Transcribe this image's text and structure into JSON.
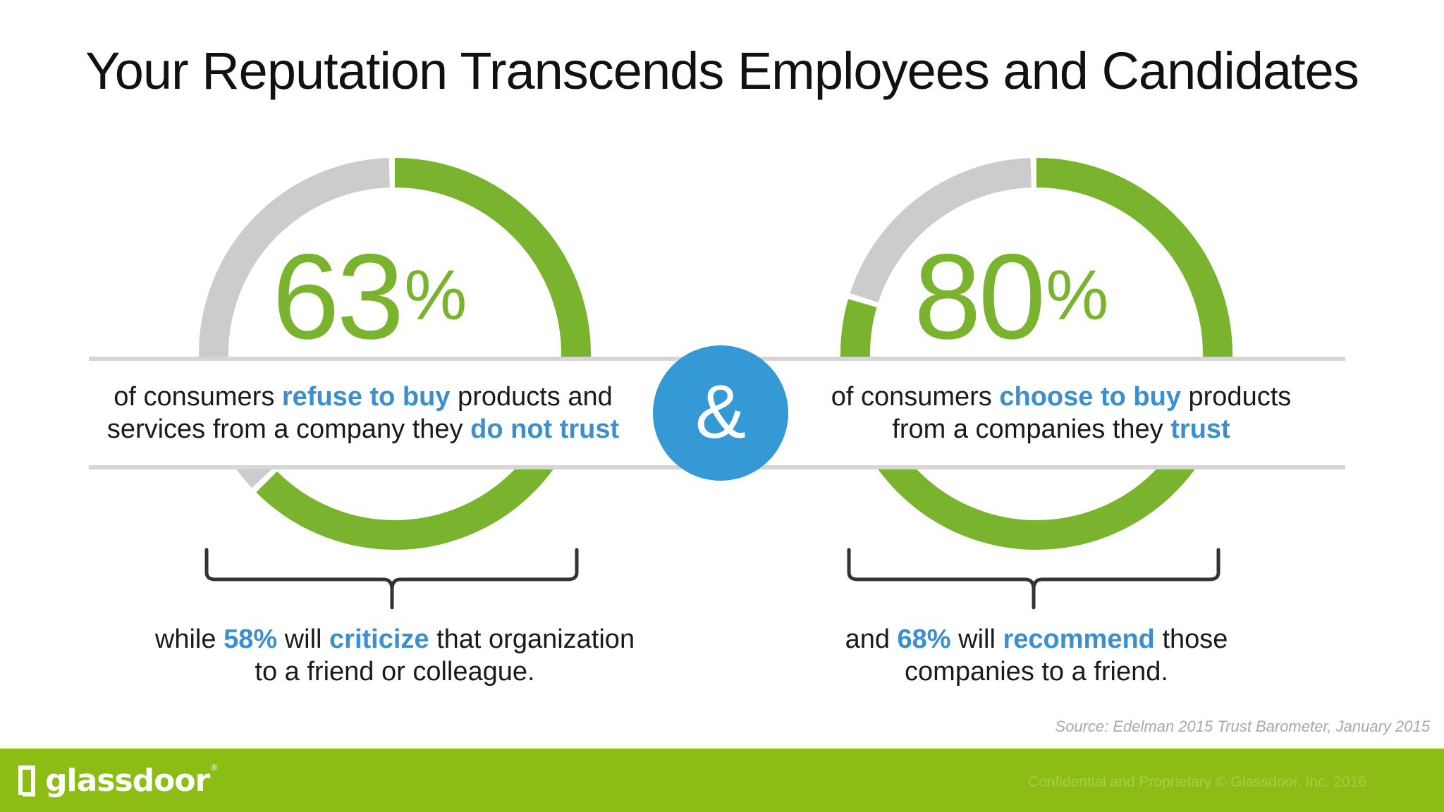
{
  "title": "Your Reputation Transcends Employees and Candidates",
  "colors": {
    "accent_green": "#7ab32e",
    "ring_gray": "#cccccc",
    "highlight_blue": "#3a8fce",
    "amp_circle": "#3599d6",
    "footer_green": "#8cbd14"
  },
  "left": {
    "percent": {
      "value": 63,
      "number": "63",
      "symbol": "%"
    },
    "ring_fill_fraction": 0.63,
    "text": {
      "p1": "of consumers ",
      "h1": "refuse to buy",
      "p2": " products and services from a company they ",
      "h2": "do not trust"
    },
    "sub": {
      "p1": "while ",
      "h1": "58%",
      "p2": " will ",
      "h2": "criticize",
      "p3": " that organization to a friend or colleague."
    }
  },
  "ampersand": "&",
  "right": {
    "percent": {
      "value": 80,
      "number": "80",
      "symbol": "%"
    },
    "ring_fill_fraction": 0.8,
    "text": {
      "p1": "of consumers ",
      "h1": "choose to buy",
      "p2": " products from a companies they ",
      "h2": "trust"
    },
    "sub": {
      "p1": "and ",
      "h1": "68%",
      "p2": " will ",
      "h2": "recommend",
      "p3": " those companies to a friend."
    }
  },
  "source": "Source: Edelman 2015 Trust Barometer, January 2015",
  "footer": {
    "logo_text": "glassdoor",
    "logo_reg": "®",
    "confidential": "Confidential and Proprietary © Glassdoor, Inc. 2016"
  },
  "icons": {
    "logo": "glassdoor-door-icon"
  }
}
